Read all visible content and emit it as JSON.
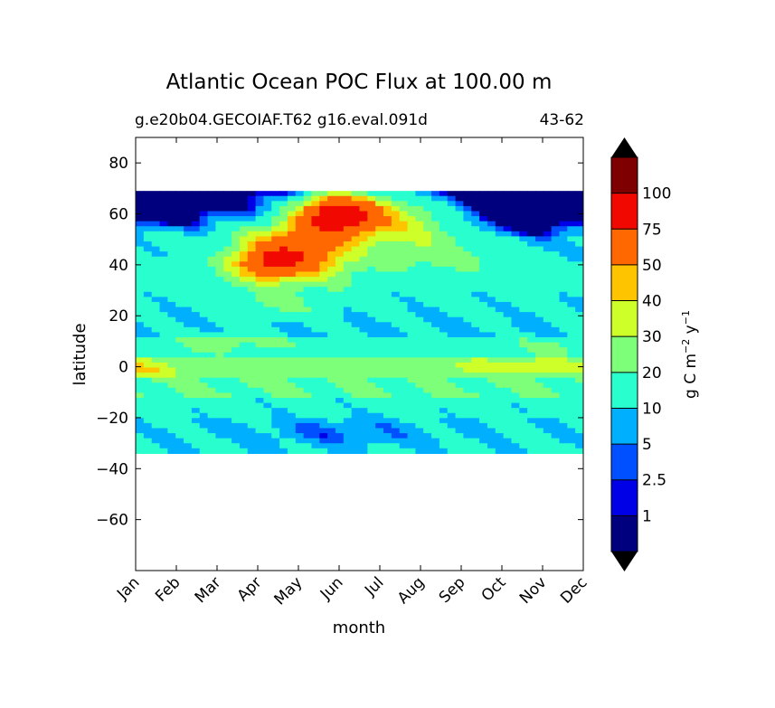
{
  "chart_data": {
    "type": "contourf",
    "title": "Atlantic Ocean POC Flux at 100.00 m",
    "subtitle_left": "g.e20b04.GECOIAF.T62 g16.eval.091d",
    "subtitle_right": "43-62",
    "xlabel": "month",
    "ylabel": "latitude",
    "x_ticks": [
      "Jan",
      "Feb",
      "Mar",
      "Apr",
      "May",
      "Jun",
      "Jul",
      "Aug",
      "Sep",
      "Oct",
      "Nov",
      "Dec"
    ],
    "xlim": [
      0,
      11
    ],
    "ylim": [
      -80,
      90
    ],
    "y_ticks": [
      80,
      60,
      40,
      20,
      0,
      -20,
      -40,
      -60
    ],
    "y_tick_labels": [
      "80",
      "60",
      "40",
      "20",
      "0",
      "−20",
      "−40",
      "−60"
    ],
    "data_lat_range": [
      -34,
      69
    ],
    "colorbar": {
      "label_main": "g C m",
      "label_exp1": "−2",
      "label_mid": " y",
      "label_exp2": "−1",
      "levels": [
        1,
        2.5,
        5,
        10,
        20,
        30,
        40,
        50,
        75,
        100
      ],
      "level_labels": [
        "1",
        "2.5",
        "5",
        "10",
        "20",
        "30",
        "40",
        "50",
        "75",
        "100"
      ],
      "colors": [
        "#00007f",
        "#0000e6",
        "#0050ff",
        "#00b0ff",
        "#29ffce",
        "#7dff7a",
        "#ceff29",
        "#ffc400",
        "#ff6800",
        "#f10800",
        "#7f0000"
      ],
      "under_color": "#000000",
      "over_color": "#000000"
    },
    "field_description": "seasonal cycle of POC flux vs latitude; high-latitude bloom peaking near 60N in Jun, equatorial band 30-40, subtropical minimum near 25S"
  }
}
